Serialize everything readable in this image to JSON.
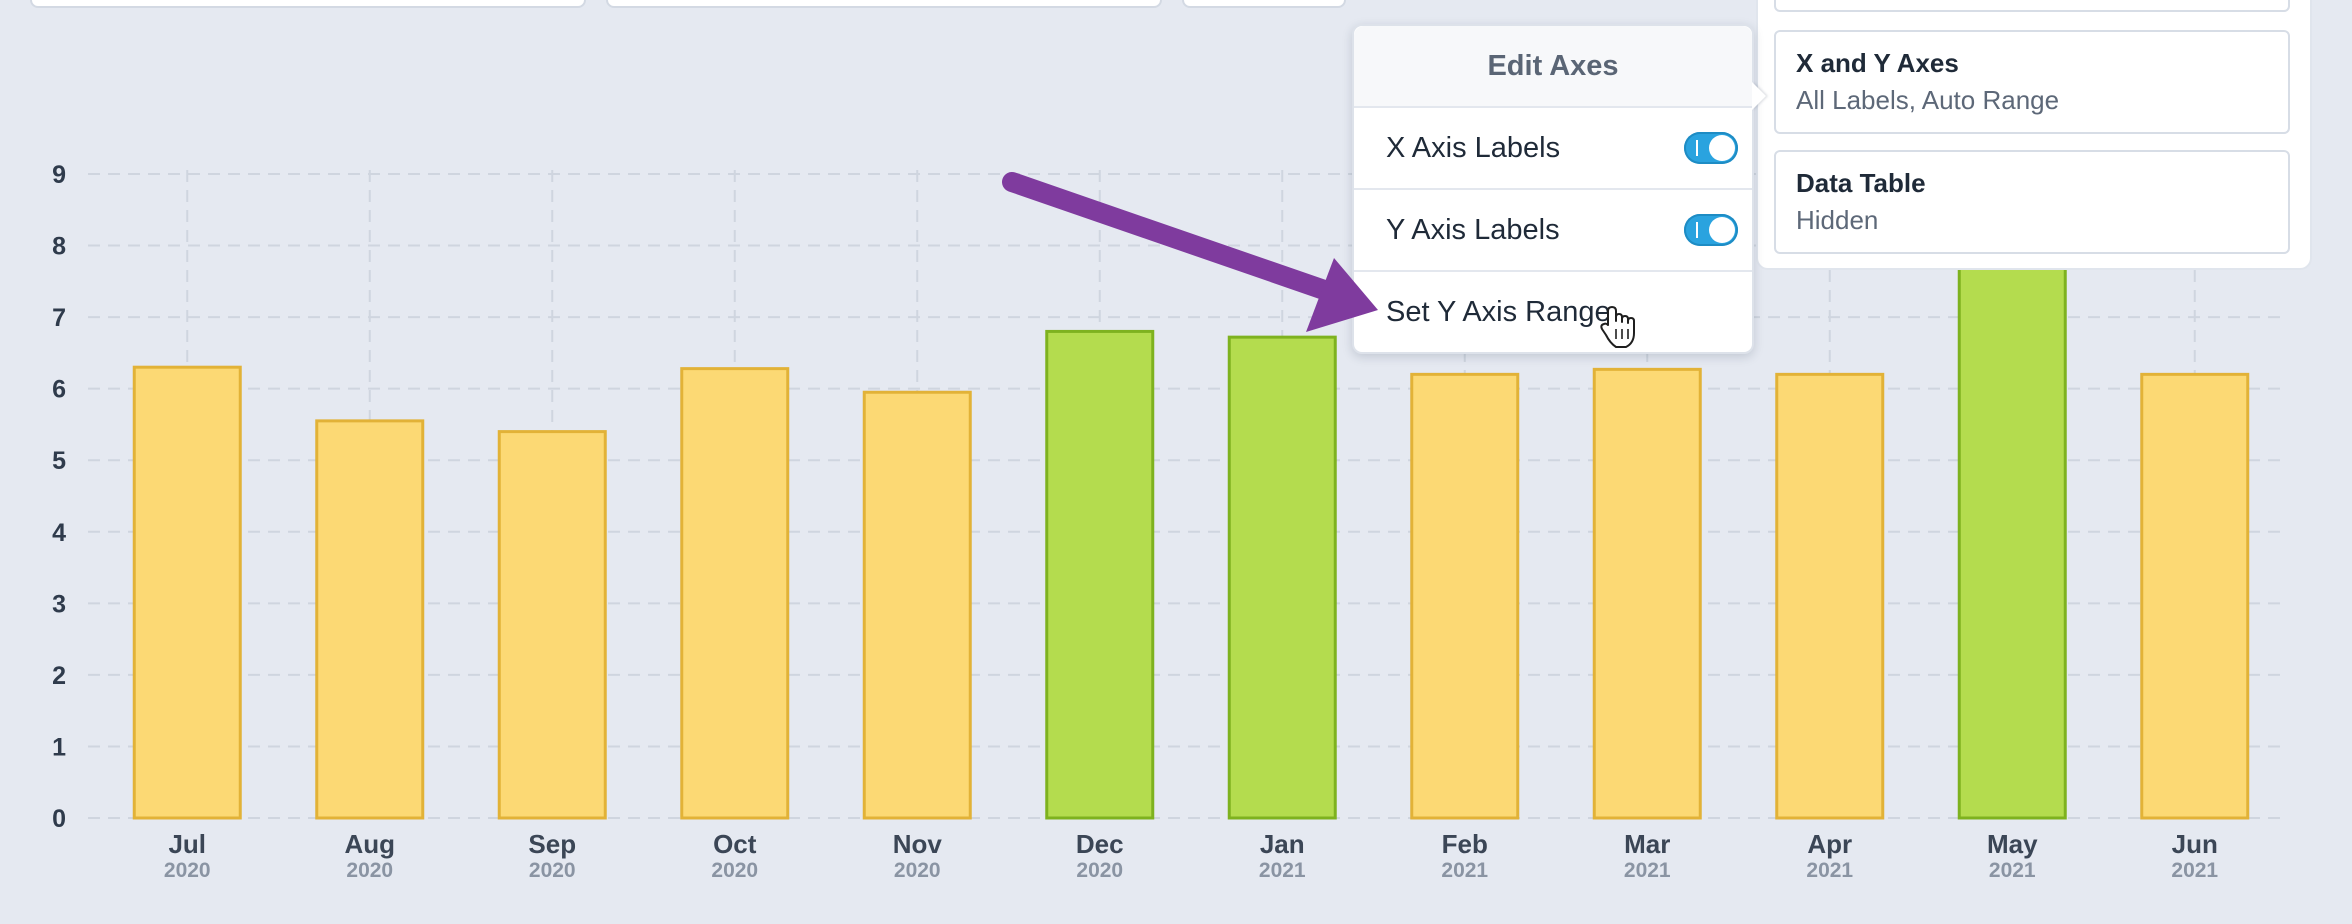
{
  "popover": {
    "title": "Edit Axes",
    "rows": [
      {
        "label": "X Axis Labels",
        "toggle": true
      },
      {
        "label": "Y Axis Labels",
        "toggle": true
      },
      {
        "label": "Set Y Axis Range"
      }
    ]
  },
  "side_panel": {
    "cards": [
      {
        "title": "X and Y Axes",
        "subtitle": "All Labels, Auto Range"
      },
      {
        "title": "Data Table",
        "subtitle": "Hidden"
      }
    ]
  },
  "colors": {
    "bar_yellow_fill": "#fcd974",
    "bar_yellow_stroke": "#e2b237",
    "bar_green_fill": "#b4dc4e",
    "bar_green_stroke": "#7eb21f",
    "arrow": "#7f3b9e",
    "toggle_on": "#2aa3df"
  },
  "chart_data": {
    "type": "bar",
    "categories": [
      "Jul",
      "Aug",
      "Sep",
      "Oct",
      "Nov",
      "Dec",
      "Jan",
      "Feb",
      "Mar",
      "Apr",
      "May",
      "Jun"
    ],
    "years": [
      "2020",
      "2020",
      "2020",
      "2020",
      "2020",
      "2020",
      "2021",
      "2021",
      "2021",
      "2021",
      "2021",
      "2021"
    ],
    "values": [
      6.3,
      5.55,
      5.4,
      6.28,
      5.95,
      6.8,
      6.72,
      6.2,
      6.27,
      6.2,
      8.5,
      6.2
    ],
    "highlight": [
      false,
      false,
      false,
      false,
      false,
      true,
      true,
      false,
      false,
      false,
      true,
      false
    ],
    "yticks": [
      "0",
      "1",
      "2",
      "3",
      "4",
      "5",
      "6",
      "7",
      "8",
      "9"
    ],
    "ylim": [
      0,
      9
    ],
    "grid": true,
    "xlabel": "",
    "ylabel": ""
  }
}
